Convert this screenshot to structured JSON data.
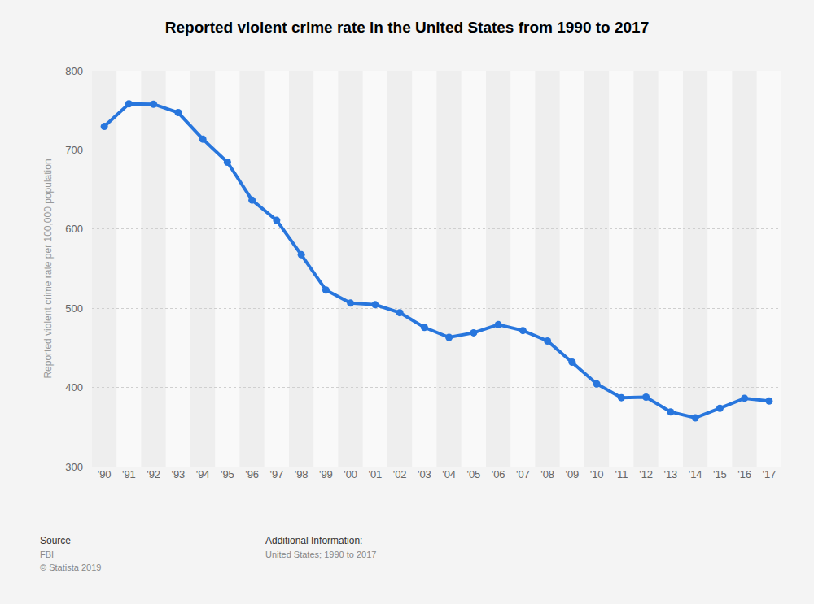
{
  "chart_data": {
    "type": "line",
    "title": "Reported violent crime rate in the United States from 1990 to 2017",
    "y_label": "Reported violent crime rate per 100,000 population",
    "categories": [
      "'90",
      "'91",
      "'92",
      "'93",
      "'94",
      "'95",
      "'96",
      "'97",
      "'98",
      "'99",
      "'00",
      "'01",
      "'02",
      "'03",
      "'04",
      "'05",
      "'06",
      "'07",
      "'08",
      "'09",
      "'10",
      "'11",
      "'12",
      "'13",
      "'14",
      "'15",
      "'16",
      "'17"
    ],
    "values": [
      729.6,
      758.2,
      757.7,
      747.1,
      713.6,
      684.5,
      636.6,
      611.0,
      567.6,
      523.0,
      506.5,
      504.5,
      494.4,
      475.8,
      463.2,
      469.0,
      479.3,
      471.8,
      458.6,
      431.9,
      404.5,
      387.1,
      387.8,
      369.1,
      361.6,
      373.7,
      386.3,
      382.9
    ],
    "color": "#2876dd",
    "marker": "circle",
    "ylim": [
      300,
      800
    ],
    "yticks": [
      300,
      400,
      500,
      600,
      700,
      800
    ],
    "grid": true,
    "annotations": [
      "Source",
      "FBI",
      "© Statista 2019",
      "Additional Information:",
      "United States; 1990 to 2017"
    ]
  }
}
